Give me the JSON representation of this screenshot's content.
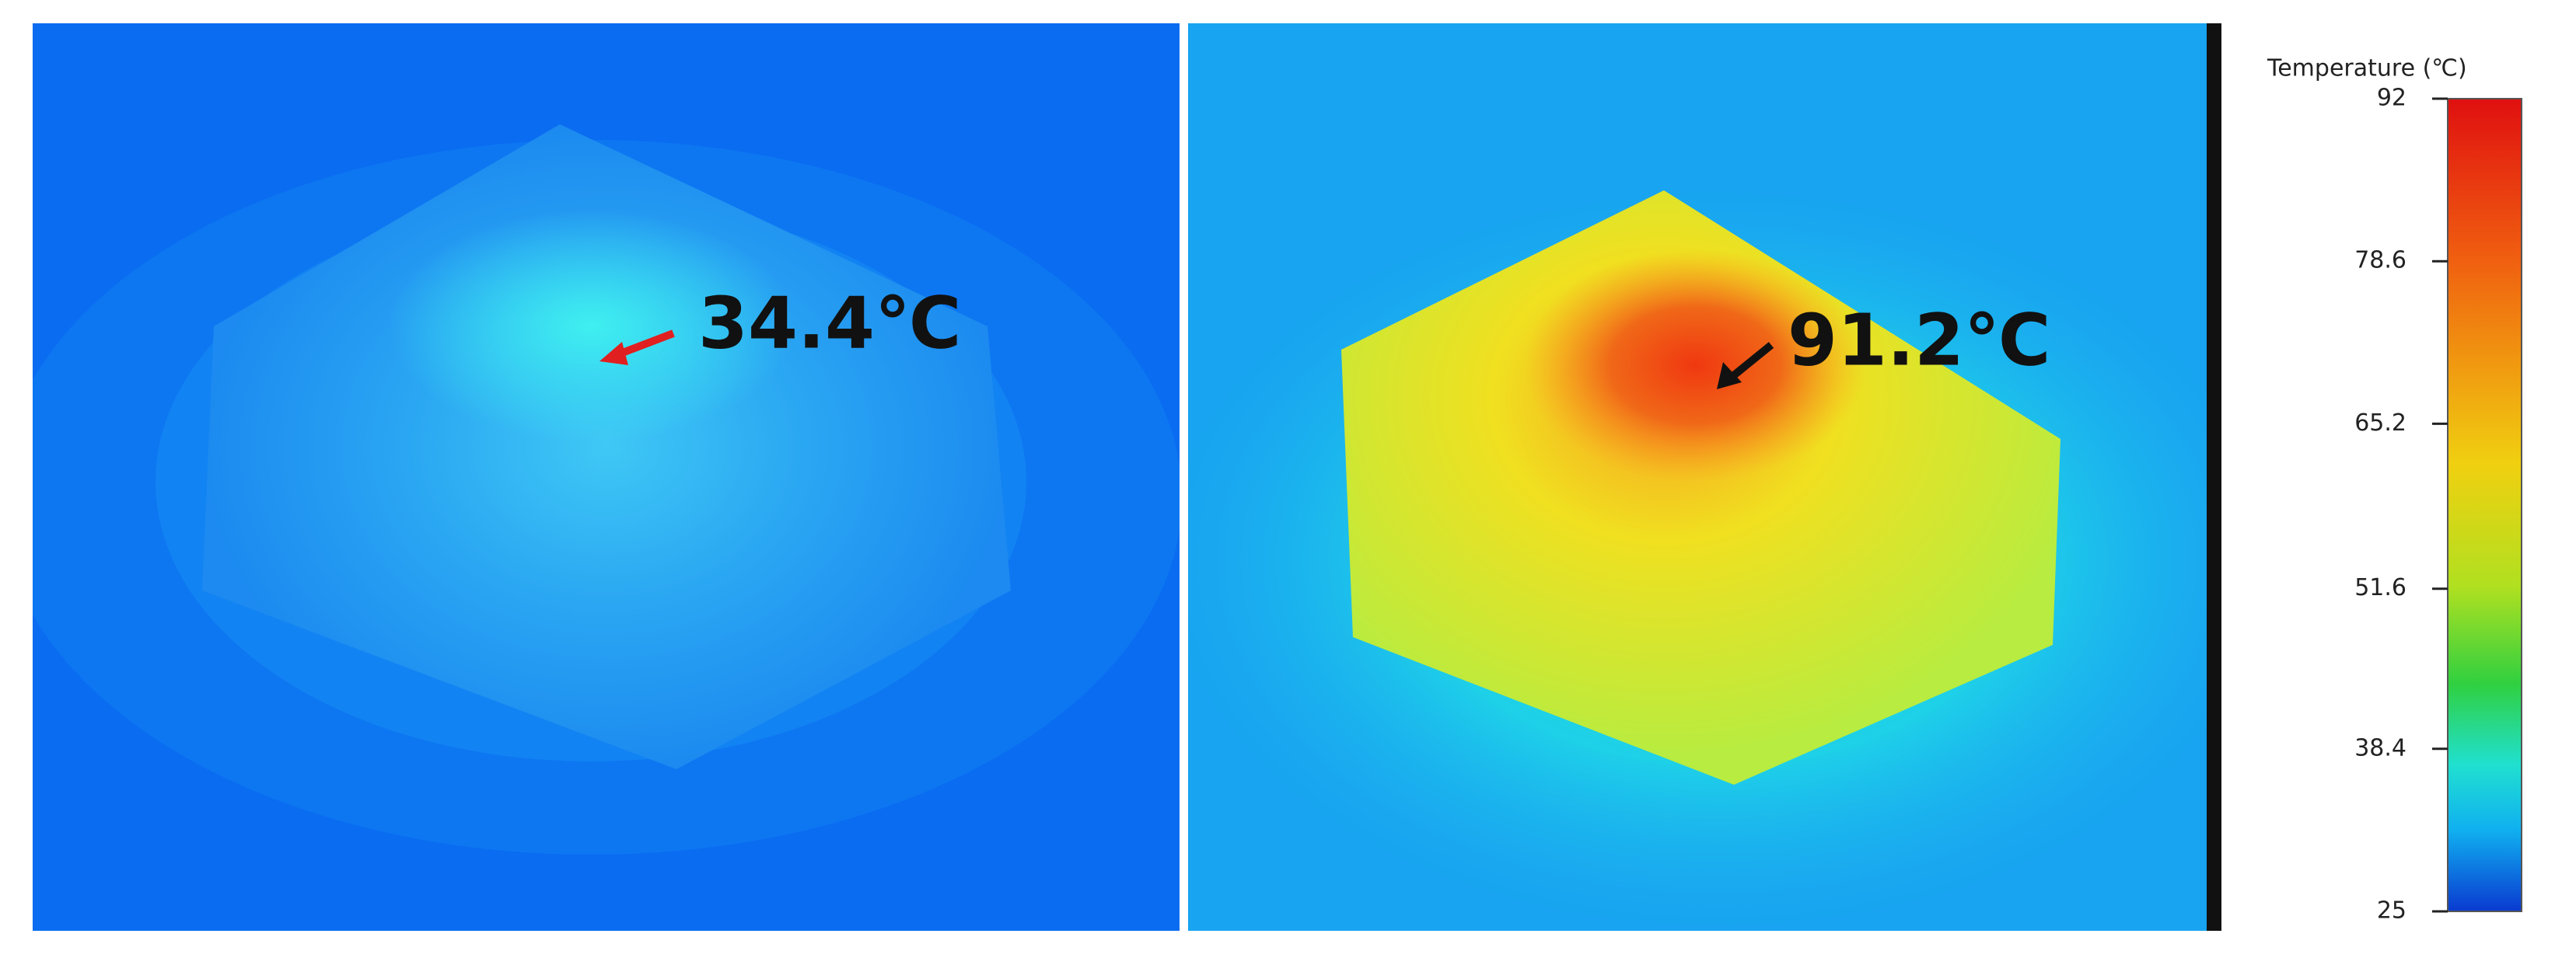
{
  "panels": [
    {
      "label": "34.4℃"
    },
    {
      "label": "91.2℃"
    }
  ],
  "colorbar": {
    "title": "Temperature (℃)",
    "ticks": [
      92,
      78.6,
      65.2,
      51.6,
      38.4,
      25
    ]
  }
}
